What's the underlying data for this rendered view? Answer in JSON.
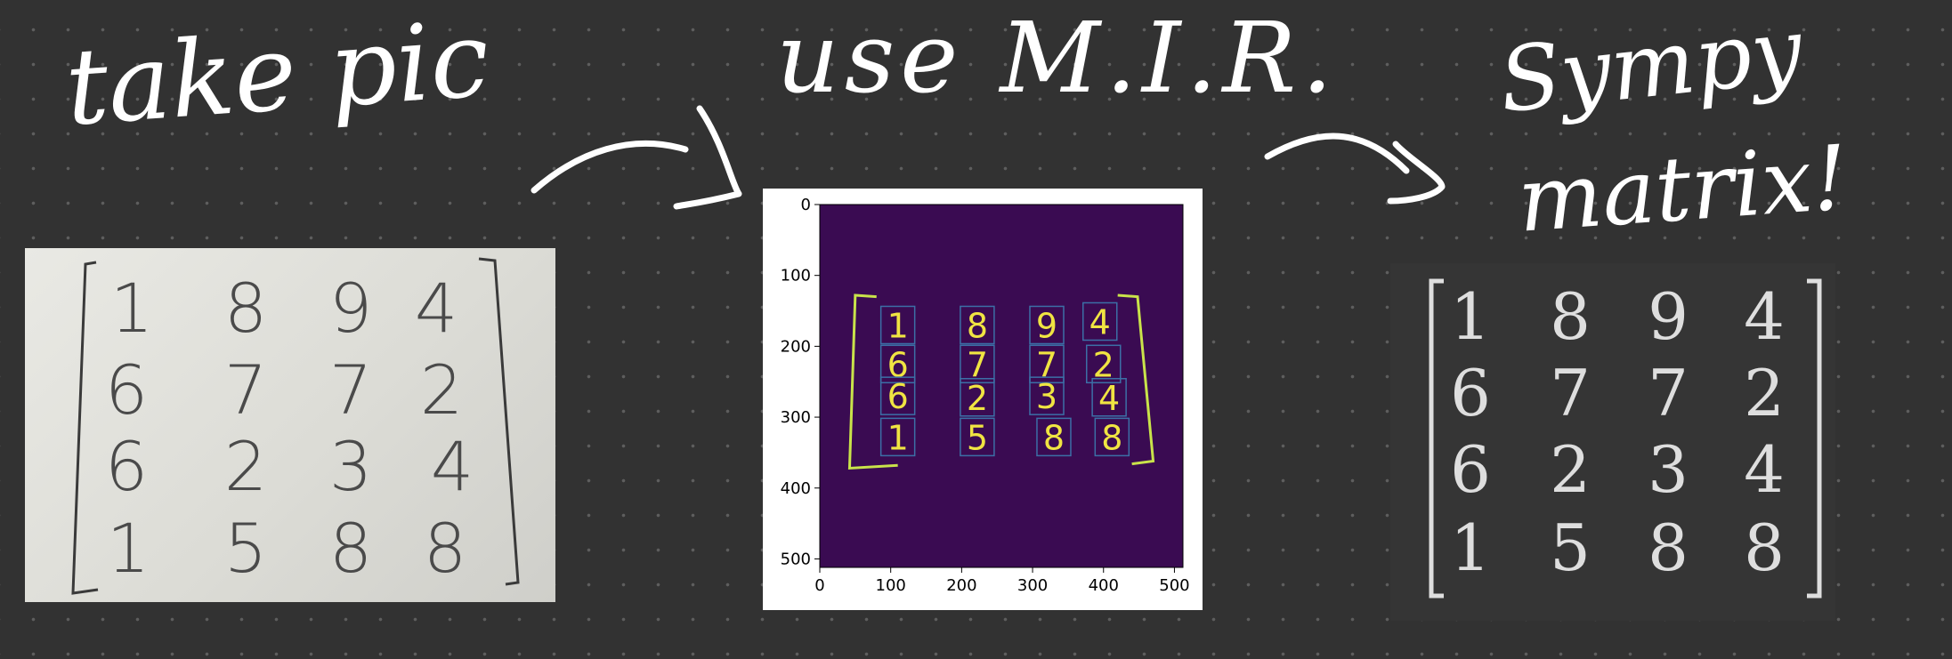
{
  "steps": {
    "take_pic_label": "take pic",
    "mir_label": "use M.I.R.",
    "sympy_label_line1": "Sympy",
    "sympy_label_line2": "matrix!"
  },
  "matrix": [
    [
      "1",
      "8",
      "9",
      "4"
    ],
    [
      "6",
      "7",
      "7",
      "2"
    ],
    [
      "6",
      "2",
      "3",
      "4"
    ],
    [
      "1",
      "5",
      "8",
      "8"
    ]
  ],
  "mir_plot": {
    "x_ticks": [
      "0",
      "100",
      "200",
      "300",
      "400",
      "500"
    ],
    "y_ticks": [
      "0",
      "100",
      "200",
      "300",
      "400",
      "500"
    ],
    "x_range": [
      0,
      512
    ],
    "y_range": [
      0,
      512
    ],
    "background_color": "#3a0b52",
    "digit_color": "#f0e442",
    "box_color": "#3c6fa6",
    "bracket_color": "#c9e34a",
    "detections": [
      {
        "label": "1",
        "cx": 110,
        "cy": 170
      },
      {
        "label": "8",
        "cx": 222,
        "cy": 170
      },
      {
        "label": "9",
        "cx": 320,
        "cy": 170
      },
      {
        "label": "4",
        "cx": 395,
        "cy": 165
      },
      {
        "label": "6",
        "cx": 110,
        "cy": 225
      },
      {
        "label": "7",
        "cx": 222,
        "cy": 225
      },
      {
        "label": "7",
        "cx": 320,
        "cy": 225
      },
      {
        "label": "2",
        "cx": 400,
        "cy": 225
      },
      {
        "label": "6",
        "cx": 110,
        "cy": 270
      },
      {
        "label": "2",
        "cx": 222,
        "cy": 272
      },
      {
        "label": "3",
        "cx": 320,
        "cy": 270
      },
      {
        "label": "4",
        "cx": 408,
        "cy": 272
      },
      {
        "label": "1",
        "cx": 110,
        "cy": 328
      },
      {
        "label": "5",
        "cx": 222,
        "cy": 328
      },
      {
        "label": "8",
        "cx": 330,
        "cy": 328
      },
      {
        "label": "8",
        "cx": 412,
        "cy": 328
      }
    ]
  }
}
